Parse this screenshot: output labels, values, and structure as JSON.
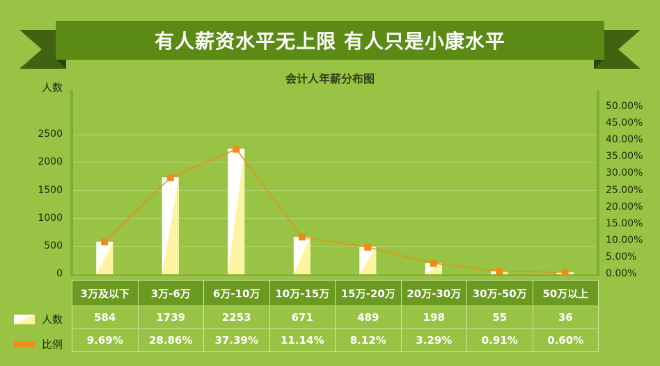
{
  "page": {
    "title": "有人薪资水平无上限 有人只是小康水平"
  },
  "chart_data": {
    "type": "bar",
    "title": "会计人年薪分布图",
    "y_left_label": "人数",
    "y_right_label": "比例",
    "ylim": [
      0,
      3000
    ],
    "y_ticks": [
      "0",
      "500",
      "1000",
      "1500",
      "2000",
      "2500"
    ],
    "y2lim": [
      0,
      0.5
    ],
    "y2_ticks": [
      "0.00%",
      "5.00%",
      "10.00%",
      "15.00%",
      "20.00%",
      "25.00%",
      "30.00%",
      "35.00%",
      "40.00%",
      "45.00%",
      "50.00%"
    ],
    "categories": [
      "3万及以下",
      "3万-6万",
      "6万-10万",
      "10万-15万",
      "15万-20万",
      "20万-30万",
      "30万-50万",
      "50万以上"
    ],
    "series": [
      {
        "name": "人数",
        "type": "bar",
        "values": [
          584,
          1739,
          2253,
          671,
          489,
          198,
          55,
          36
        ],
        "labels": [
          "584",
          "1739",
          "2253",
          "671",
          "489",
          "198",
          "55",
          "36"
        ]
      },
      {
        "name": "比例",
        "type": "line",
        "values": [
          0.0969,
          0.2886,
          0.3739,
          0.1114,
          0.0812,
          0.0329,
          0.0091,
          0.006
        ],
        "labels": [
          "9.69%",
          "28.86%",
          "37.39%",
          "11.14%",
          "8.12%",
          "3.29%",
          "0.91%",
          "0.60%"
        ]
      }
    ],
    "colors": {
      "bar_light": "#fdf4a3",
      "bar_white": "#ffffff",
      "line": "#e98e1a",
      "header": "#6a9a1f",
      "banner": "#5b8a15",
      "banner_dark": "#3f6310"
    },
    "grid": true
  }
}
